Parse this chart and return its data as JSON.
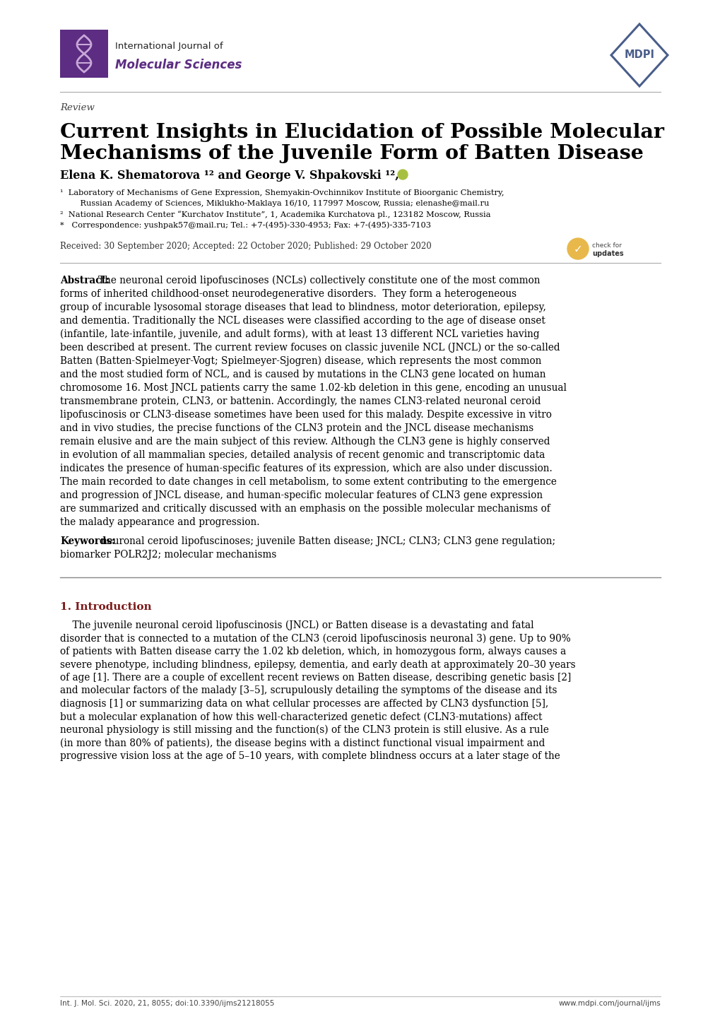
{
  "background_color": "#ffffff",
  "header_journal_line1": "International Journal of",
  "header_journal_line2": "Molecular Sciences",
  "journal_logo_color": "#5c2d82",
  "mdpi_logo_color": "#4a5e8a",
  "review_label": "Review",
  "title_line1": "Current Insights in Elucidation of Possible Molecular",
  "title_line2": "Mechanisms of the Juvenile Form of Batten Disease",
  "authors_line": "Elena K. Shematorova ¹² and George V. Shpakovski ¹²,*",
  "aff1_line1": "¹  Laboratory of Mechanisms of Gene Expression, Shemyakin-Ovchinnikov Institute of Bioorganic Chemistry,",
  "aff1_line2": "    Russian Academy of Sciences, Miklukho-Maklaya 16/10, 117997 Moscow, Russia; elenashe@mail.ru",
  "aff2": "²  National Research Center “Kurchatov Institute”, 1, Academika Kurchatova pl., 123182 Moscow, Russia",
  "aff3": "*   Correspondence: yushpak57@mail.ru; Tel.: +7-(495)-330-4953; Fax: +7-(495)-335-7103",
  "received_line": "Received: 30 September 2020; Accepted: 22 October 2020; Published: 29 October 2020",
  "abstract_lines": [
    "Abstract: The neuronal ceroid lipofuscinoses (NCLs) collectively constitute one of the most common",
    "forms of inherited childhood-onset neurodegenerative disorders.  They form a heterogeneous",
    "group of incurable lysosomal storage diseases that lead to blindness, motor deterioration, epilepsy,",
    "and dementia. Traditionally the NCL diseases were classified according to the age of disease onset",
    "(infantile, late-infantile, juvenile, and adult forms), with at least 13 different NCL varieties having",
    "been described at present. The current review focuses on classic juvenile NCL (JNCL) or the so-called",
    "Batten (Batten-Spielmeyer-Vogt; Spielmeyer-Sjogren) disease, which represents the most common",
    "and the most studied form of NCL, and is caused by mutations in the CLN3 gene located on human",
    "chromosome 16. Most JNCL patients carry the same 1.02-kb deletion in this gene, encoding an unusual",
    "transmembrane protein, CLN3, or battenin. Accordingly, the names CLN3-related neuronal ceroid",
    "lipofuscinosis or CLN3-disease sometimes have been used for this malady. Despite excessive in vitro",
    "and in vivo studies, the precise functions of the CLN3 protein and the JNCL disease mechanisms",
    "remain elusive and are the main subject of this review. Although the CLN3 gene is highly conserved",
    "in evolution of all mammalian species, detailed analysis of recent genomic and transcriptomic data",
    "indicates the presence of human-specific features of its expression, which are also under discussion.",
    "The main recorded to date changes in cell metabolism, to some extent contributing to the emergence",
    "and progression of JNCL disease, and human-specific molecular features of CLN3 gene expression",
    "are summarized and critically discussed with an emphasis on the possible molecular mechanisms of",
    "the malady appearance and progression."
  ],
  "keywords_line1": "Keywords: neuronal ceroid lipofuscinoses; juvenile Batten disease; JNCL; CLN3; CLN3 gene regulation;",
  "keywords_line2": "biomarker POLR2J2; molecular mechanisms",
  "section1_title": "1. Introduction",
  "intro_lines": [
    "    The juvenile neuronal ceroid lipofuscinosis (JNCL) or Batten disease is a devastating and fatal",
    "disorder that is connected to a mutation of the CLN3 (ceroid lipofuscinosis neuronal 3) gene. Up to 90%",
    "of patients with Batten disease carry the 1.02 kb deletion, which, in homozygous form, always causes a",
    "severe phenotype, including blindness, epilepsy, dementia, and early death at approximately 20–30 years",
    "of age [1]. There are a couple of excellent recent reviews on Batten disease, describing genetic basis [2]",
    "and molecular factors of the malady [3–5], scrupulously detailing the symptoms of the disease and its",
    "diagnosis [1] or summarizing data on what cellular processes are affected by CLN3 dysfunction [5],",
    "but a molecular explanation of how this well-characterized genetic defect (CLN3-mutations) affect",
    "neuronal physiology is still missing and the function(s) of the CLN3 protein is still elusive. As a rule",
    "(in more than 80% of patients), the disease begins with a distinct functional visual impairment and",
    "progressive vision loss at the age of 5–10 years, with complete blindness occurs at a later stage of the"
  ],
  "footer_left": "Int. J. Mol. Sci. 2020, 21, 8055; doi:10.3390/ijms21218055",
  "footer_right": "www.mdpi.com/journal/ijms",
  "text_color": "#000000",
  "light_text_color": "#333333",
  "section_color": "#7b1a1a",
  "divider_color": "#aaaaaa"
}
